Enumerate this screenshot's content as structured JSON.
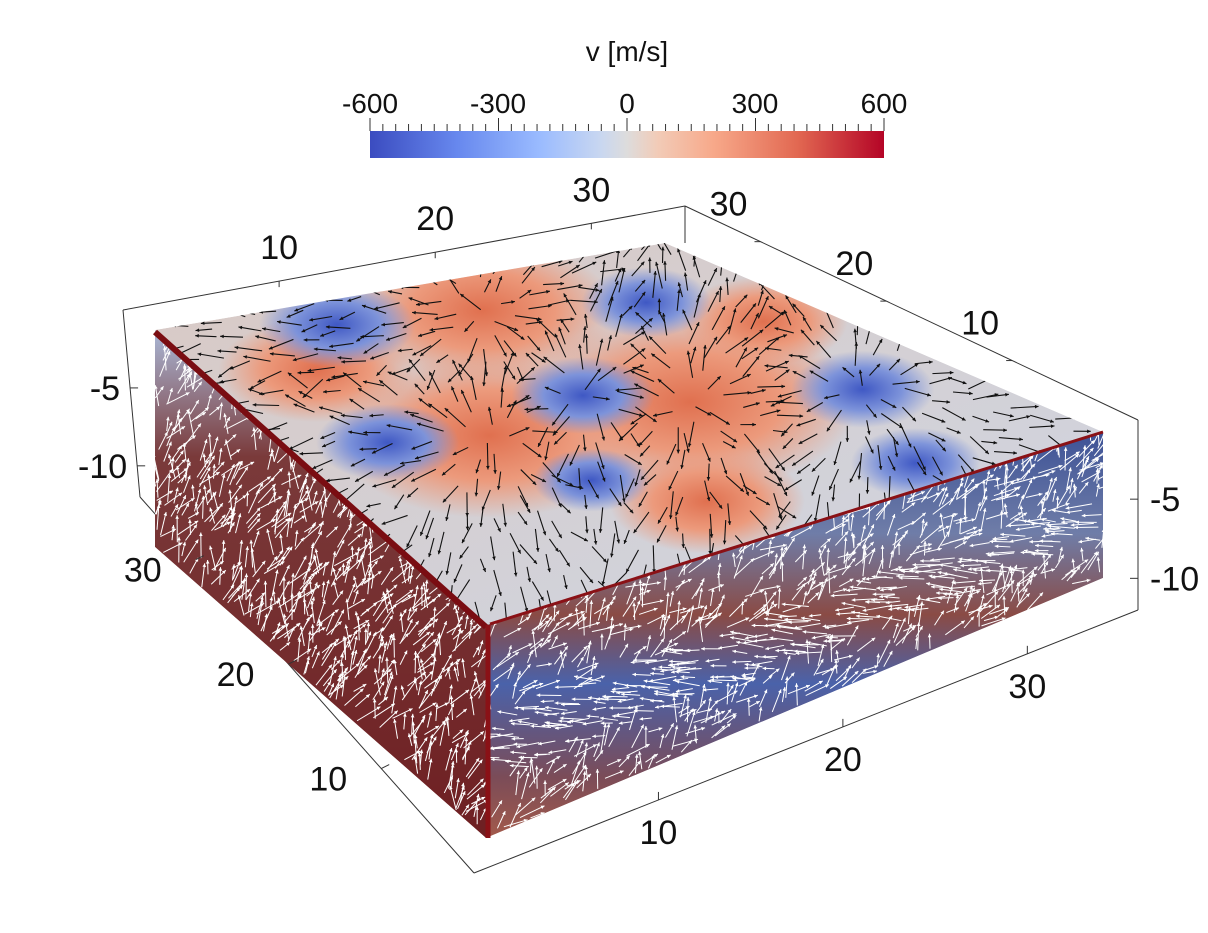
{
  "colorbar": {
    "title": "v [m/s]",
    "tick_labels": [
      "-600",
      "-300",
      "0",
      "300",
      "600"
    ],
    "range": [
      -600,
      600
    ],
    "colormap": "cool-to-warm",
    "colors": {
      "low": "#3b4cc0",
      "mid": "#dddcdc",
      "high": "#b40426"
    }
  },
  "chart_data": {
    "type": "heatmap",
    "title": "",
    "render": "3D volume rendering with velocity glyphs",
    "quantity": "v [m/s]",
    "value_range": [
      -600,
      600
    ],
    "axes": {
      "x": {
        "tick_labels": [
          "10",
          "20",
          "30"
        ],
        "range": [
          0,
          36
        ]
      },
      "y": {
        "tick_labels": [
          "10",
          "20",
          "30"
        ],
        "range": [
          0,
          36
        ]
      },
      "z": {
        "tick_labels": [
          "-5",
          "-10"
        ],
        "range": [
          -12,
          0
        ]
      }
    },
    "glyphs": {
      "top_surface": "black arrows",
      "side_faces": "white arrows"
    }
  }
}
